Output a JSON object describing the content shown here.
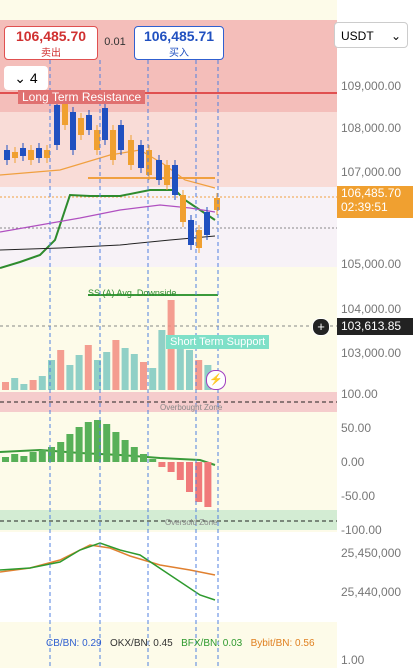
{
  "header": {
    "sell_price": "106,485.70",
    "sell_label": "卖出",
    "quantity": "0.01",
    "buy_price": "106,485.71",
    "buy_label": "买入",
    "currency": "USDT",
    "interval_count": "4"
  },
  "overlay_labels": {
    "long_term_resistance": "Long Term Resistance",
    "short_term_support": "Short Term Support",
    "downside": "SS (A) Avg. Downside",
    "overbought": "Overbought Zone",
    "oversold": "Oversold Zone"
  },
  "price_axis": [
    "109,000.00",
    "108,000.00",
    "107,000.00",
    "105,000.00",
    "104,000.00",
    "103,000.00"
  ],
  "current_price": {
    "price": "106,485.70",
    "countdown": "02:39:51"
  },
  "cursor_price": "103,613.85",
  "oscillator_axis": [
    "100.00",
    "50.00",
    "0.00",
    "-50.00",
    "-100.00"
  ],
  "volume_axis": [
    "25,450,000",
    "25,440,000"
  ],
  "ratio_axis": [
    "1.00"
  ],
  "exchange_ratios": [
    "CB/BN: 0.29",
    "OKX/BN: 0.45",
    "BFX/BN: 0.03",
    "Bybit/BN: 0.56"
  ]
}
